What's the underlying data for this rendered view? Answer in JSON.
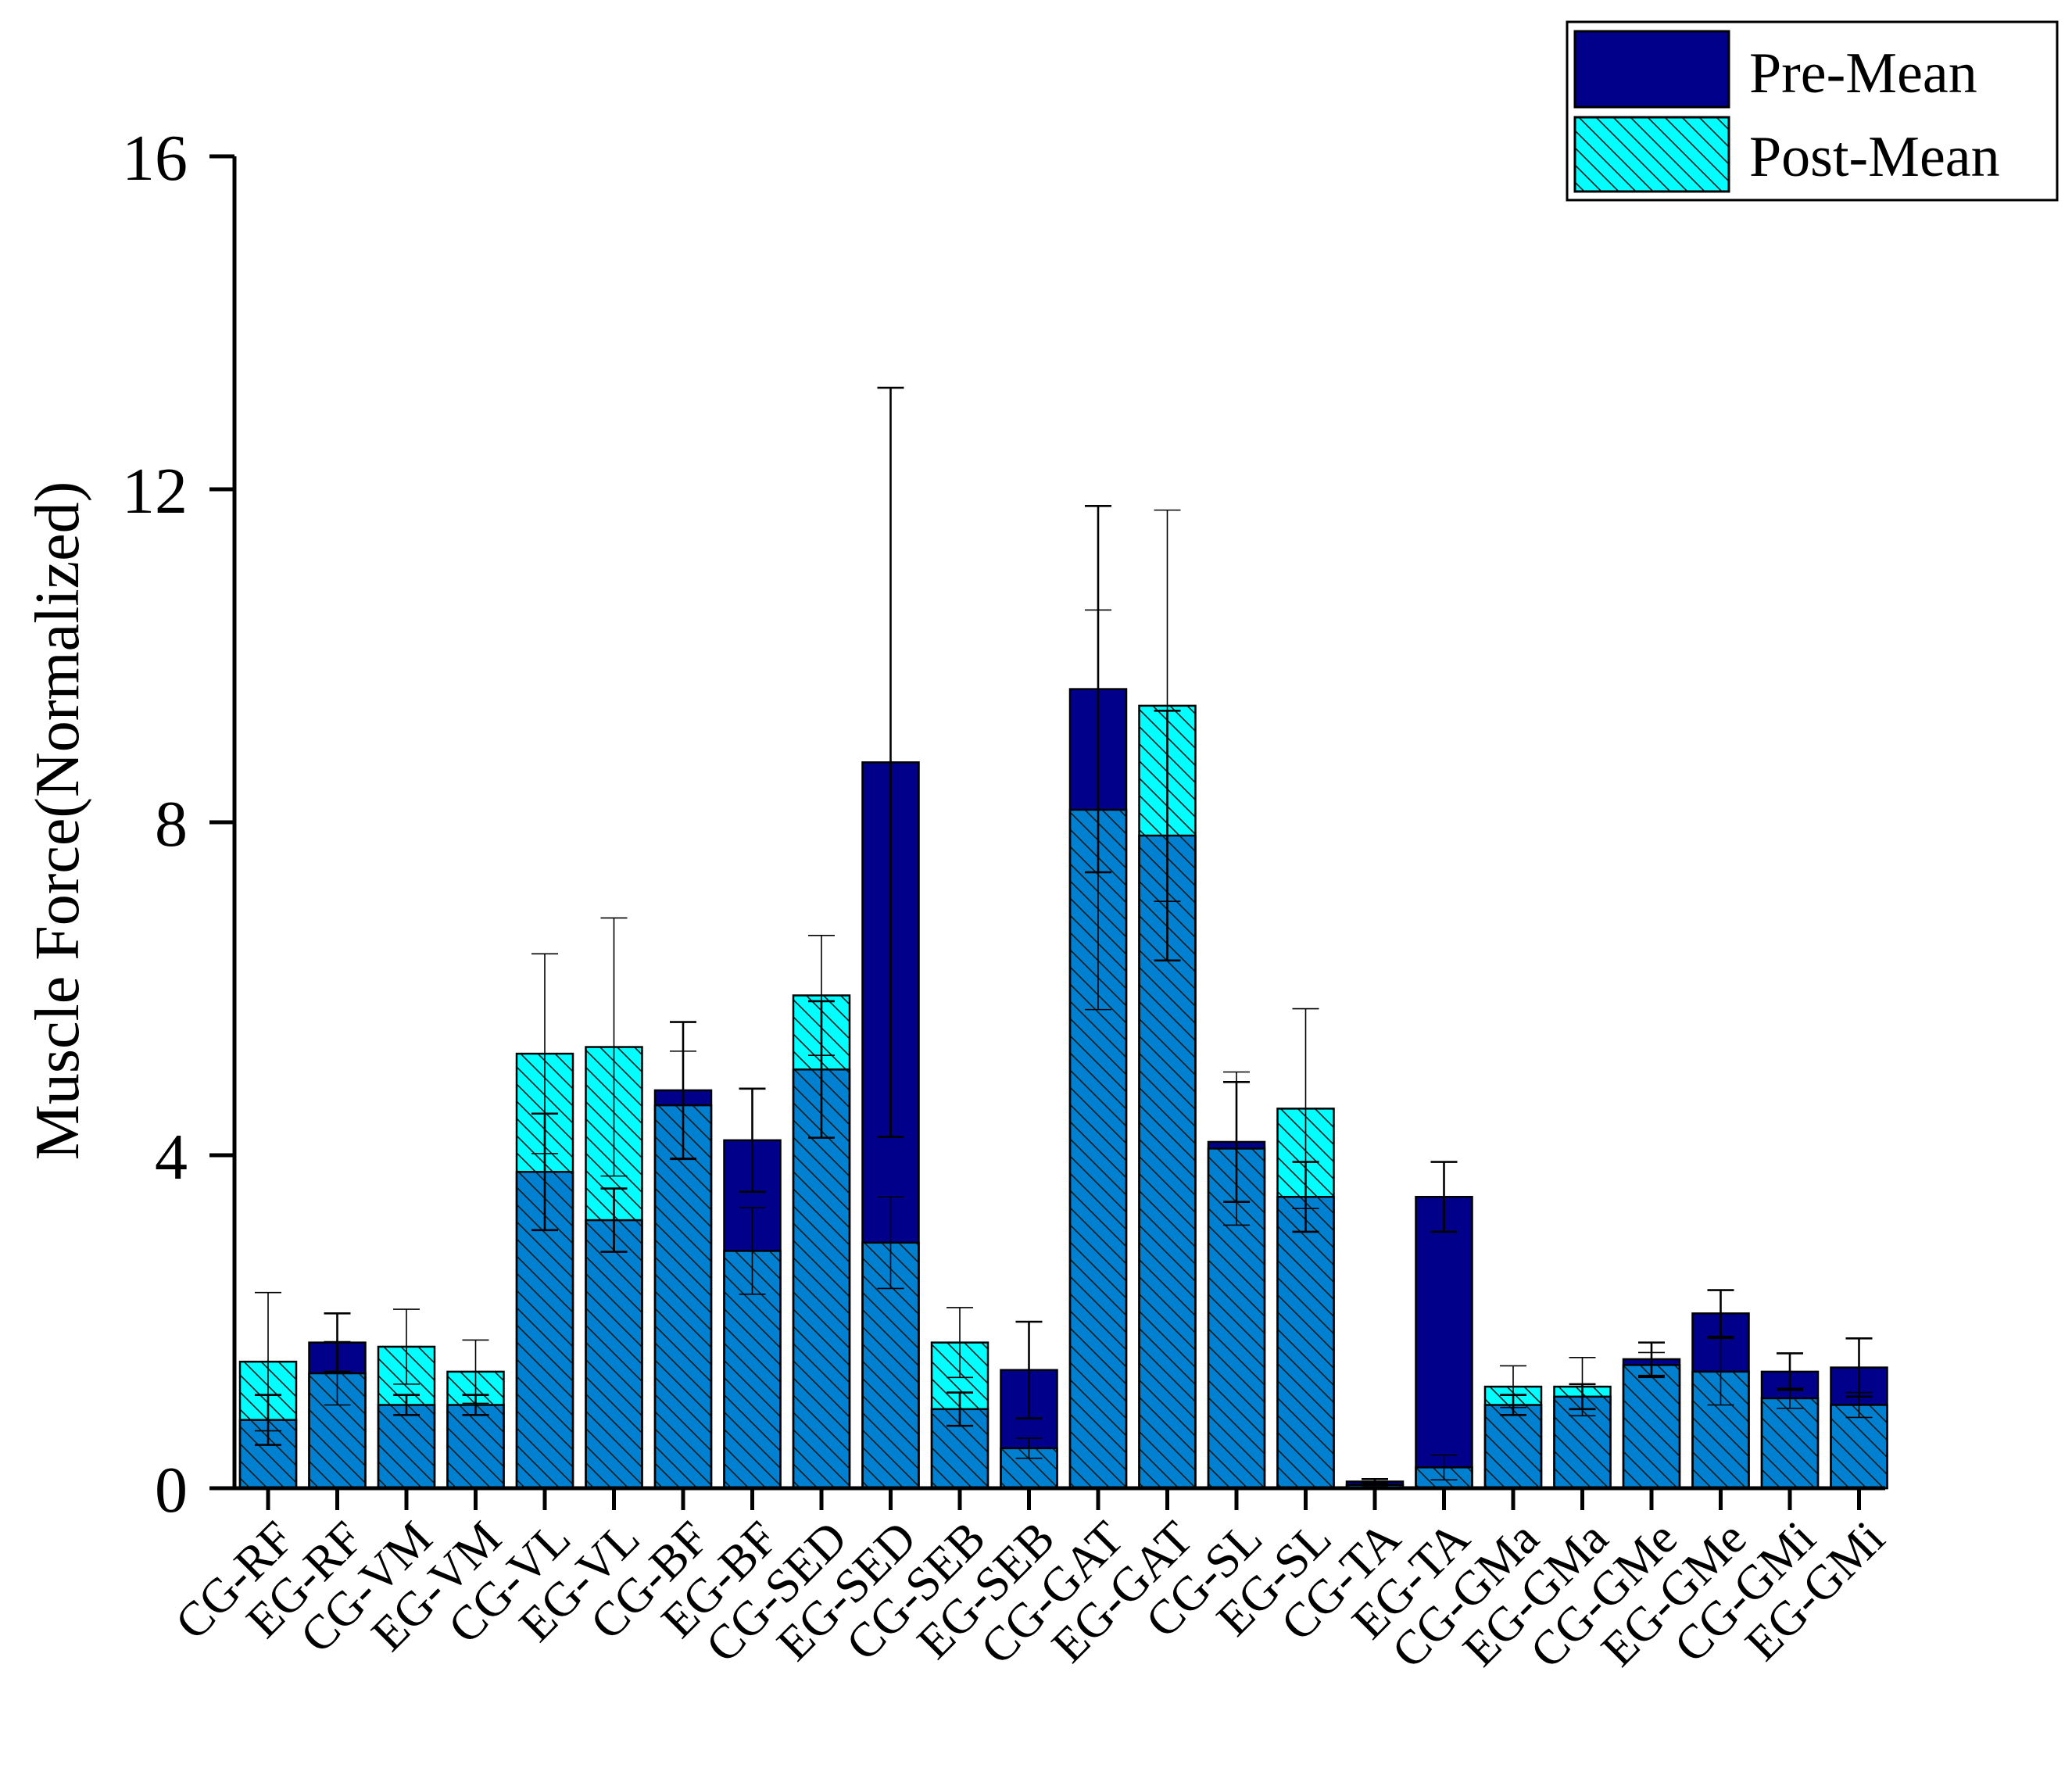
{
  "chart_data": {
    "type": "bar",
    "title": "",
    "xlabel": "",
    "ylabel": "Muscle Force(Normalized)",
    "ylim": [
      0,
      16
    ],
    "yticks": [
      "0",
      "4",
      "8",
      "12",
      "16"
    ],
    "ytick_values": [
      0,
      4,
      8,
      12,
      16
    ],
    "grid": false,
    "legend_position": "top-right",
    "categories": [
      "CG-RF",
      "EG-RF",
      "CG-VM",
      "EG-VM",
      "CG-VL",
      "EG-VL",
      "CG-BF",
      "EG-BF",
      "CG-SED",
      "EG-SED",
      "CG-SEB",
      "EG-SEB",
      "CG-GAT",
      "EG-GAT",
      "CG-SL",
      "EG-SL",
      "CG-TA",
      "EG-TA",
      "CG-GMa",
      "EG-GMa",
      "CG-GMe",
      "EG-GMe",
      "CG-GMi",
      "EG-GMi"
    ],
    "series": [
      {
        "name": "Pre-Mean",
        "values": [
          0.82,
          1.75,
          1.0,
          1.0,
          3.8,
          3.22,
          4.78,
          4.18,
          5.03,
          8.72,
          0.95,
          1.42,
          9.6,
          7.84,
          4.16,
          3.5,
          0.08,
          3.5,
          1.0,
          1.1,
          1.55,
          2.1,
          1.4,
          1.45
        ],
        "error": [
          0.3,
          0.35,
          0.12,
          0.12,
          0.7,
          0.38,
          0.82,
          0.62,
          0.82,
          4.5,
          0.2,
          0.58,
          2.2,
          1.5,
          0.72,
          0.42,
          0.03,
          0.42,
          0.12,
          0.15,
          0.2,
          0.28,
          0.22,
          0.35
        ],
        "color": "#00008B",
        "pattern": "solid"
      },
      {
        "name": "Post-Mean",
        "values": [
          1.52,
          1.38,
          1.7,
          1.4,
          5.22,
          5.3,
          4.6,
          2.85,
          5.92,
          2.95,
          1.75,
          0.48,
          8.15,
          9.4,
          4.08,
          4.56,
          0.04,
          0.25,
          1.22,
          1.22,
          1.48,
          1.4,
          1.08,
          1.0
        ],
        "error": [
          0.83,
          0.38,
          0.45,
          0.38,
          1.2,
          1.55,
          0.65,
          0.52,
          0.72,
          0.55,
          0.42,
          0.12,
          2.4,
          2.35,
          0.92,
          1.2,
          0.02,
          0.15,
          0.25,
          0.35,
          0.15,
          0.4,
          0.12,
          0.15
        ],
        "color": "#00FFFF",
        "pattern": "hatched"
      }
    ],
    "overlap_color": "#0080D0"
  }
}
